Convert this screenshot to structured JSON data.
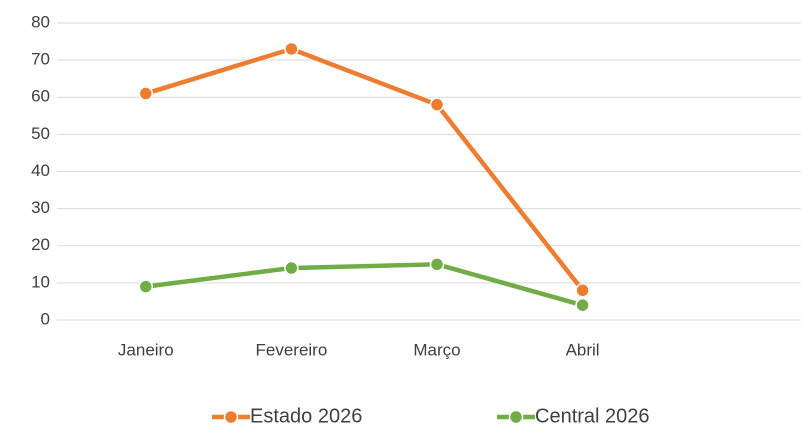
{
  "chart_data": {
    "type": "line",
    "categories": [
      "Janeiro",
      "Fevereiro",
      "Março",
      "Abril",
      null
    ],
    "series": [
      {
        "name": "Estado 2026",
        "color": "#ed7d31",
        "values": [
          61,
          73,
          58,
          8,
          null
        ]
      },
      {
        "name": "Central 2026",
        "color": "#70ad47",
        "values": [
          9,
          14,
          15,
          4,
          null
        ]
      }
    ],
    "ylim": [
      0,
      80
    ],
    "yticks": [
      0,
      10,
      20,
      30,
      40,
      50,
      60,
      70,
      80
    ],
    "grid": true,
    "legend": "bottom"
  }
}
